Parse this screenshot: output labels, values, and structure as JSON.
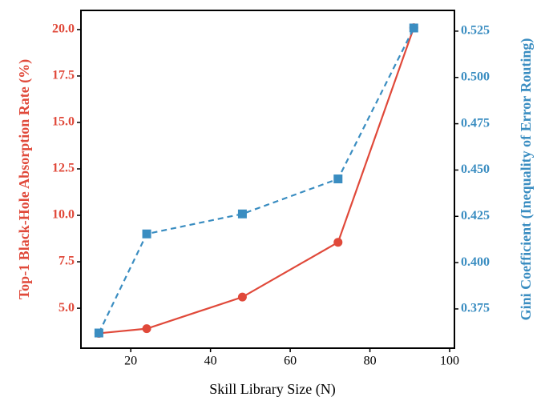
{
  "chart_data": {
    "type": "line",
    "xlabel": "Skill Library Size (N)",
    "ylabel": "Top-1 Black-Hole Absorption Rate (%)",
    "y2label": "Gini Coefficient (Inequality of Error Routing)",
    "x": [
      12,
      24,
      48,
      72,
      91
    ],
    "series": [
      {
        "name": "Top-1 Black-Hole Absorption Rate (%)",
        "color": "#e0493a",
        "marker": "circle",
        "dash": "solid",
        "values": [
          3.65,
          3.9,
          5.6,
          8.55,
          20.1
        ]
      },
      {
        "name": "Gini Coefficient (Inequality of Error Routing)",
        "color": "#3a8dc1",
        "marker": "square",
        "dash": "dashed",
        "axis": "y2",
        "values": [
          0.362,
          0.4155,
          0.4263,
          0.4452,
          0.5267
        ]
      }
    ],
    "xlim": [
      7.5,
      101.2
    ],
    "xticks": [
      20,
      40,
      60,
      80,
      100
    ],
    "ylim": [
      2.85,
      21.03
    ],
    "yticks": [
      {
        "value": 5,
        "label": "5.0"
      },
      7.5,
      {
        "value": 10,
        "label": "10.0"
      },
      12.5,
      {
        "value": 15,
        "label": "15.0"
      },
      17.5,
      {
        "value": 20,
        "label": "20.0"
      }
    ],
    "y2lim": [
      0.3538,
      0.5362
    ],
    "y2ticks": [
      0.375,
      {
        "value": 0.4,
        "label": "0.400"
      },
      0.425,
      {
        "value": 0.45,
        "label": "0.450"
      },
      0.475,
      {
        "value": 0.5,
        "label": "0.500"
      },
      0.525
    ]
  }
}
